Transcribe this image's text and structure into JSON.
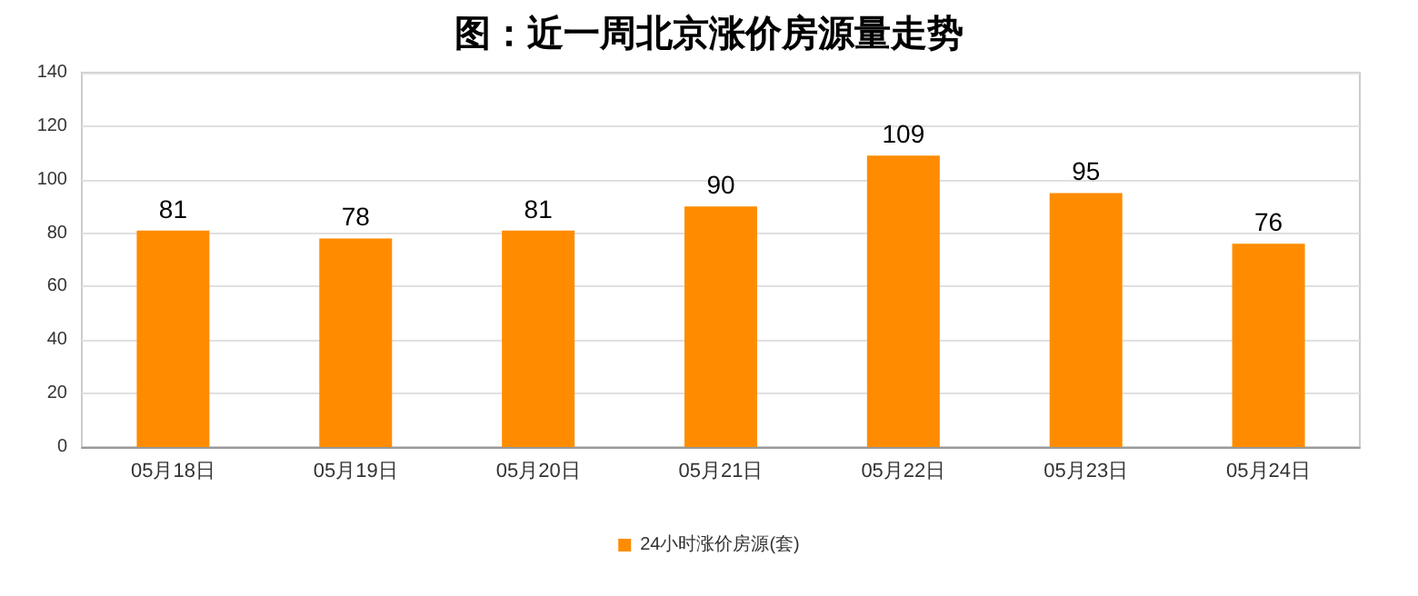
{
  "chart_data": {
    "type": "bar",
    "title": "图：近一周北京涨价房源量走势",
    "categories": [
      "05月18日",
      "05月19日",
      "05月20日",
      "05月21日",
      "05月22日",
      "05月23日",
      "05月24日"
    ],
    "series": [
      {
        "name": "24小时涨价房源(套)",
        "color": "#ff8c00",
        "values": [
          81,
          78,
          81,
          90,
          109,
          95,
          76
        ]
      }
    ],
    "ylim": [
      0,
      140
    ],
    "yticks": [
      0,
      20,
      40,
      60,
      80,
      100,
      120,
      140
    ],
    "grid": "y",
    "legend": "bottom",
    "data_labels": true
  }
}
